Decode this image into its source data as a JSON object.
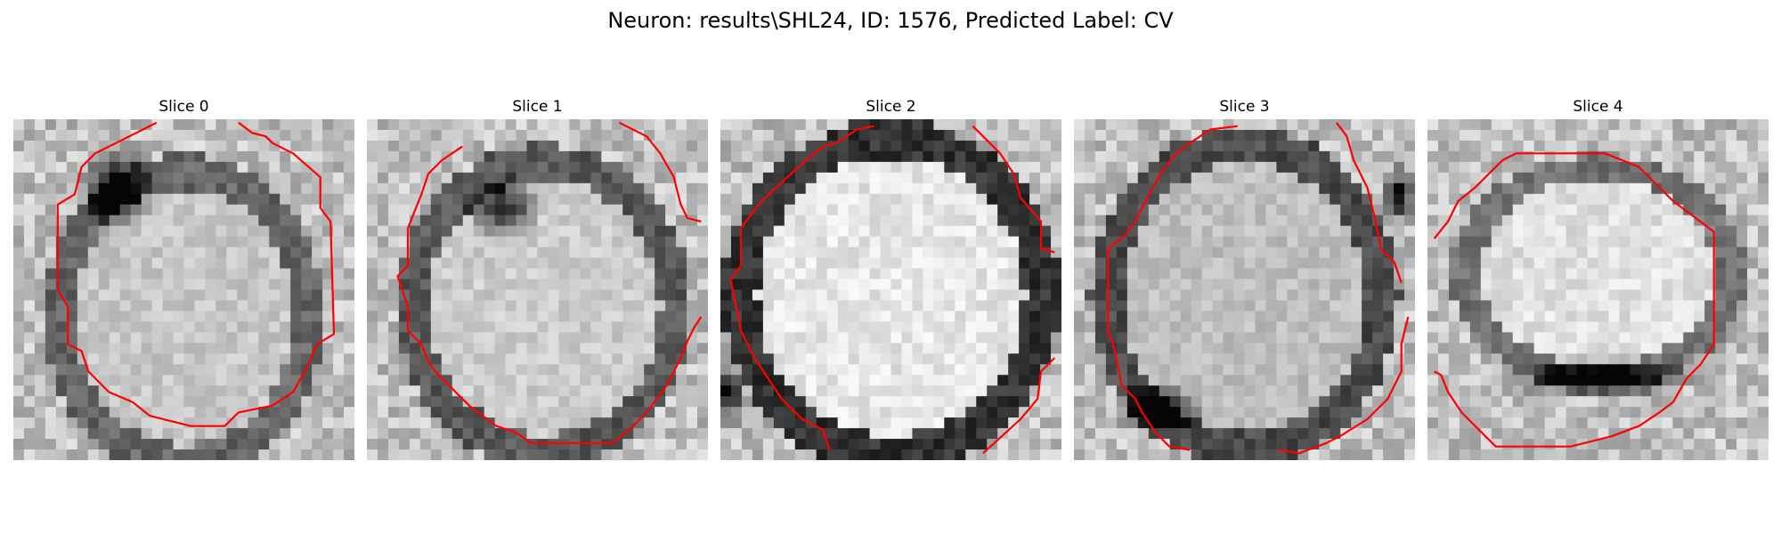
{
  "figure": {
    "title": "Neuron: results\\SHL24, ID: 1576, Predicted Label: CV"
  },
  "contour_color": "#ff0000",
  "panels": [
    {
      "title": "Slice 0"
    },
    {
      "title": "Slice 1"
    },
    {
      "title": "Slice 2"
    },
    {
      "title": "Slice 3"
    },
    {
      "title": "Slice 4"
    }
  ]
}
